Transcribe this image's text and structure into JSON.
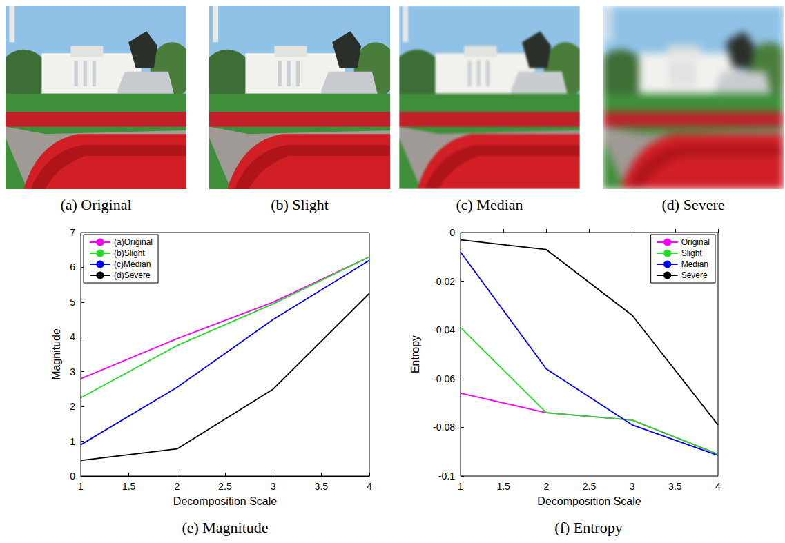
{
  "images": [
    {
      "caption": "(a) Original"
    },
    {
      "caption": "(b) Slight"
    },
    {
      "caption": "(c) Median"
    },
    {
      "caption": "(d) Severe"
    }
  ],
  "chart_data": [
    {
      "type": "line",
      "title": "(e) Magnitude",
      "x_label": "Decomposition Scale",
      "y_label": "Magnitude",
      "x": [
        1,
        2,
        3,
        4
      ],
      "xlim": [
        1,
        4
      ],
      "xticks": [
        1,
        1.5,
        2,
        2.5,
        3,
        3.5,
        4
      ],
      "ylim": [
        0,
        7
      ],
      "yticks": [
        0,
        1,
        2,
        3,
        4,
        5,
        6,
        7
      ],
      "grid": false,
      "legend": "upper left",
      "series": [
        {
          "name": "(a)Original",
          "color": "#ff00ff",
          "values": [
            2.8,
            3.95,
            5.0,
            6.3
          ]
        },
        {
          "name": "(b)Slight",
          "color": "#22dd22",
          "values": [
            2.25,
            3.75,
            4.95,
            6.3
          ]
        },
        {
          "name": "(c)Median",
          "color": "#0000ff",
          "values": [
            0.9,
            2.55,
            4.5,
            6.2
          ]
        },
        {
          "name": "(d)Severe",
          "color": "#000000",
          "values": [
            0.45,
            0.78,
            2.5,
            5.25
          ]
        }
      ]
    },
    {
      "type": "line",
      "title": "(f) Entropy",
      "x_label": "Decomposition Scale",
      "y_label": "Entropy",
      "x": [
        1,
        2,
        3,
        4
      ],
      "xlim": [
        1,
        4
      ],
      "xticks": [
        1,
        1.5,
        2,
        2.5,
        3,
        3.5,
        4
      ],
      "ylim": [
        -0.1,
        0
      ],
      "yticks": [
        -0.1,
        -0.08,
        -0.06,
        -0.04,
        -0.02,
        0
      ],
      "grid": false,
      "legend": "upper right",
      "series": [
        {
          "name": "Original",
          "color": "#ff00ff",
          "values": [
            -0.066,
            -0.074,
            -0.077,
            -0.091
          ]
        },
        {
          "name": "Slight",
          "color": "#22dd22",
          "values": [
            -0.039,
            -0.074,
            -0.077,
            -0.091
          ]
        },
        {
          "name": "Median",
          "color": "#0000ff",
          "values": [
            -0.008,
            -0.056,
            -0.079,
            -0.0915
          ]
        },
        {
          "name": "Severe",
          "color": "#000000",
          "values": [
            -0.003,
            -0.007,
            -0.034,
            -0.079
          ]
        }
      ]
    }
  ]
}
